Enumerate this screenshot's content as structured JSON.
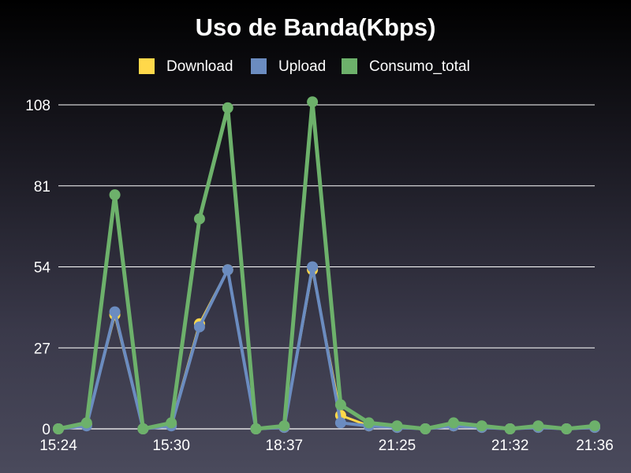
{
  "chart_data": {
    "type": "line",
    "title": "Uso de Banda(Kbps)",
    "xlabel": "",
    "ylabel": "",
    "ylim": [
      0,
      108
    ],
    "yticks": [
      0,
      27,
      54,
      81,
      108
    ],
    "grid": true,
    "legend_position": "top",
    "x_tick_labels": [
      {
        "index": 0,
        "label": "15:24"
      },
      {
        "index": 4,
        "label": "15:30"
      },
      {
        "index": 8,
        "label": "18:37"
      },
      {
        "index": 12,
        "label": "21:25"
      },
      {
        "index": 16,
        "label": "21:32"
      },
      {
        "index": 19,
        "label": "21:36"
      }
    ],
    "x_count": 20,
    "series": [
      {
        "name": "Download",
        "color": "#ffd84a",
        "values": [
          0,
          1.5,
          38,
          0,
          1.5,
          35,
          53,
          0,
          0.5,
          53,
          4.5,
          1,
          0.5,
          0,
          1,
          0.5,
          0,
          0.5,
          0,
          0.5
        ]
      },
      {
        "name": "Upload",
        "color": "#6b8cc0",
        "values": [
          0,
          1,
          39,
          0,
          1,
          34,
          53,
          0,
          0.5,
          54,
          2,
          1,
          0.5,
          0,
          1,
          0.5,
          0,
          0.5,
          0,
          0.5
        ]
      },
      {
        "name": "Consumo_total",
        "color": "#6db16b",
        "values": [
          0,
          2,
          78,
          0,
          2,
          70,
          107,
          0,
          1,
          109,
          8,
          2,
          1,
          0,
          2,
          1,
          0,
          1,
          0,
          1
        ]
      }
    ]
  }
}
